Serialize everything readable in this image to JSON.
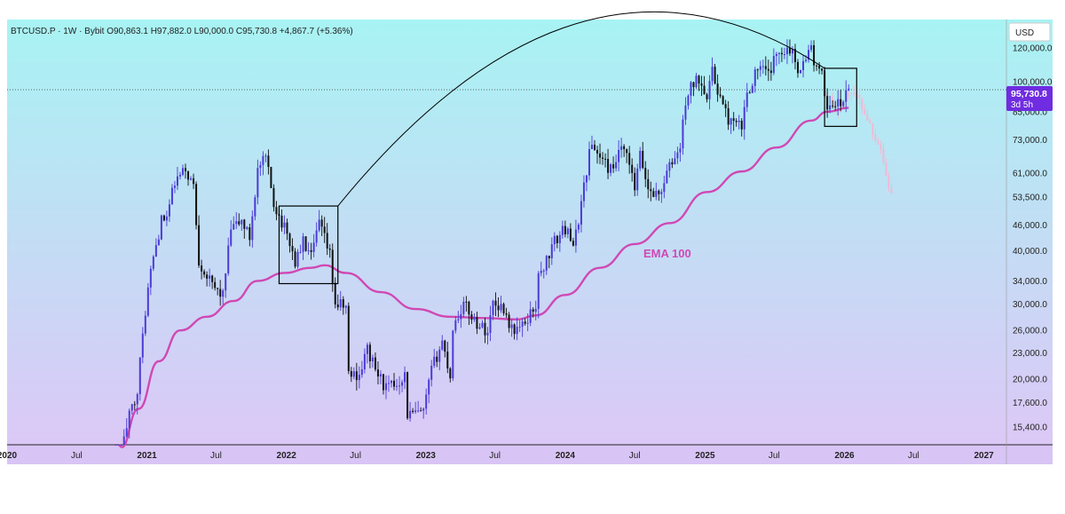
{
  "header": {
    "symbol": "BTCUSD.P",
    "interval": "1W",
    "exchange": "Bybit",
    "open": "O90,863.1",
    "high": "H97,882.0",
    "low": "L90,000.0",
    "close": "C95,730.8",
    "change": "+4,867.7 (+5.36%)"
  },
  "currency_label": "USD",
  "price_tag": {
    "price": "95,730.8",
    "countdown": "3d 5h"
  },
  "colors": {
    "bg_top": "#a8f3f3",
    "bg_bottom": "#dcc8f6",
    "bull": "#4b3bd6",
    "bear": "#111111",
    "ema": "#d048b4",
    "projection": "#f3b8d4",
    "box": "#000000",
    "price_tag": "#6f2ce0"
  },
  "chart_data": {
    "type": "candlestick",
    "y_scale": "log",
    "ylim": [
      14000,
      140000
    ],
    "xlim": [
      "2020-01-01",
      "2027-03-01"
    ],
    "y_ticks": [
      {
        "value": 120000,
        "label": "120,000.0"
      },
      {
        "value": 100000,
        "label": "100,000.0"
      },
      {
        "value": 85000,
        "label": "85,000.0"
      },
      {
        "value": 73000,
        "label": "73,000.0"
      },
      {
        "value": 61000,
        "label": "61,000.0"
      },
      {
        "value": 53500,
        "label": "53,500.0"
      },
      {
        "value": 46000,
        "label": "46,000.0"
      },
      {
        "value": 40000,
        "label": "40,000.0"
      },
      {
        "value": 34000,
        "label": "34,000.0"
      },
      {
        "value": 30000,
        "label": "30,000.0"
      },
      {
        "value": 26000,
        "label": "26,000.0"
      },
      {
        "value": 23000,
        "label": "23,000.0"
      },
      {
        "value": 20000,
        "label": "20,000.0"
      },
      {
        "value": 17600,
        "label": "17,600.0"
      },
      {
        "value": 15400,
        "label": "15,400.0"
      }
    ],
    "x_ticks": [
      {
        "date": "2020-01-01",
        "label": "2020",
        "bold": true
      },
      {
        "date": "2020-07-01",
        "label": "Jul",
        "bold": false
      },
      {
        "date": "2021-01-01",
        "label": "2021",
        "bold": true
      },
      {
        "date": "2021-07-01",
        "label": "Jul",
        "bold": false
      },
      {
        "date": "2022-01-01",
        "label": "2022",
        "bold": true
      },
      {
        "date": "2022-07-01",
        "label": "Jul",
        "bold": false
      },
      {
        "date": "2023-01-01",
        "label": "2023",
        "bold": true
      },
      {
        "date": "2023-07-01",
        "label": "Jul",
        "bold": false
      },
      {
        "date": "2024-01-01",
        "label": "2024",
        "bold": true
      },
      {
        "date": "2024-07-01",
        "label": "Jul",
        "bold": false
      },
      {
        "date": "2025-01-01",
        "label": "2025",
        "bold": true
      },
      {
        "date": "2025-07-01",
        "label": "Jul",
        "bold": false
      },
      {
        "date": "2026-01-01",
        "label": "2026",
        "bold": true
      },
      {
        "date": "2026-07-01",
        "label": "Jul",
        "bold": false
      },
      {
        "date": "2027-01-01",
        "label": "2027",
        "bold": true
      }
    ],
    "price_keypoints": [
      [
        "2020-10-12",
        11500
      ],
      [
        "2020-11-09",
        15500
      ],
      [
        "2020-12-07",
        19000
      ],
      [
        "2020-12-28",
        29000
      ],
      [
        "2021-01-11",
        36000
      ],
      [
        "2021-02-08",
        47000
      ],
      [
        "2021-02-22",
        48000
      ],
      [
        "2021-03-15",
        58000
      ],
      [
        "2021-04-12",
        62000
      ],
      [
        "2021-05-03",
        57000
      ],
      [
        "2021-05-17",
        38000
      ],
      [
        "2021-06-21",
        33000
      ],
      [
        "2021-07-19",
        31500
      ],
      [
        "2021-08-09",
        45000
      ],
      [
        "2021-09-06",
        47000
      ],
      [
        "2021-09-27",
        43000
      ],
      [
        "2021-10-18",
        62000
      ],
      [
        "2021-11-08",
        66000
      ],
      [
        "2021-11-29",
        52000
      ],
      [
        "2022-01-10",
        42000
      ],
      [
        "2022-01-24",
        37500
      ],
      [
        "2022-02-14",
        42000
      ],
      [
        "2022-03-07",
        38500
      ],
      [
        "2022-03-28",
        46500
      ],
      [
        "2022-04-25",
        39000
      ],
      [
        "2022-05-09",
        30000
      ],
      [
        "2022-06-06",
        29500
      ],
      [
        "2022-06-13",
        20500
      ],
      [
        "2022-07-11",
        20500
      ],
      [
        "2022-08-01",
        23500
      ],
      [
        "2022-08-22",
        21000
      ],
      [
        "2022-09-19",
        19000
      ],
      [
        "2022-10-17",
        19500
      ],
      [
        "2022-11-07",
        20500
      ],
      [
        "2022-11-14",
        16500
      ],
      [
        "2022-12-26",
        16600
      ],
      [
        "2023-01-16",
        21000
      ],
      [
        "2023-02-13",
        24500
      ],
      [
        "2023-03-06",
        20300
      ],
      [
        "2023-03-13",
        26500
      ],
      [
        "2023-04-10",
        30000
      ],
      [
        "2023-05-15",
        27000
      ],
      [
        "2023-06-12",
        25800
      ],
      [
        "2023-06-26",
        30400
      ],
      [
        "2023-07-24",
        29300
      ],
      [
        "2023-08-14",
        26100
      ],
      [
        "2023-09-11",
        26500
      ],
      [
        "2023-10-16",
        30000
      ],
      [
        "2023-10-23",
        34500
      ],
      [
        "2023-12-04",
        42000
      ],
      [
        "2024-01-08",
        46000
      ],
      [
        "2024-01-22",
        40000
      ],
      [
        "2024-02-12",
        52000
      ],
      [
        "2024-03-04",
        68000
      ],
      [
        "2024-03-11",
        71000
      ],
      [
        "2024-04-15",
        64000
      ],
      [
        "2024-05-06",
        61000
      ],
      [
        "2024-05-20",
        69000
      ],
      [
        "2024-06-10",
        67000
      ],
      [
        "2024-07-01",
        56000
      ],
      [
        "2024-07-15",
        67000
      ],
      [
        "2024-08-05",
        56000
      ],
      [
        "2024-09-02",
        54000
      ],
      [
        "2024-09-30",
        63000
      ],
      [
        "2024-10-28",
        70000
      ],
      [
        "2024-11-11",
        90000
      ],
      [
        "2024-11-25",
        97000
      ],
      [
        "2024-12-16",
        102000
      ],
      [
        "2025-01-06",
        94000
      ],
      [
        "2025-01-20",
        105000
      ],
      [
        "2025-02-24",
        84000
      ],
      [
        "2025-03-10",
        80000
      ],
      [
        "2025-04-07",
        78000
      ],
      [
        "2025-04-21",
        94000
      ],
      [
        "2025-05-19",
        108000
      ],
      [
        "2025-06-16",
        104000
      ],
      [
        "2025-07-14",
        119000
      ],
      [
        "2025-08-11",
        120000
      ],
      [
        "2025-09-01",
        108000
      ],
      [
        "2025-09-22",
        112000
      ],
      [
        "2025-10-06",
        124000
      ],
      [
        "2025-10-13",
        108000
      ],
      [
        "2025-11-03",
        103000
      ],
      [
        "2025-11-17",
        87000
      ],
      [
        "2025-12-01",
        89000
      ],
      [
        "2025-12-22",
        88000
      ],
      [
        "2026-01-12",
        95730.8
      ]
    ],
    "ema_points": [
      [
        "2020-10-20",
        13000
      ],
      [
        "2020-12-10",
        17000
      ],
      [
        "2021-02-01",
        22000
      ],
      [
        "2021-03-29",
        26000
      ],
      [
        "2021-06-07",
        28000
      ],
      [
        "2021-08-16",
        30500
      ],
      [
        "2021-10-18",
        34000
      ],
      [
        "2021-12-27",
        35500
      ],
      [
        "2022-03-07",
        36500
      ],
      [
        "2022-04-11",
        37000
      ],
      [
        "2022-06-06",
        35500
      ],
      [
        "2022-09-05",
        32000
      ],
      [
        "2022-12-05",
        29200
      ],
      [
        "2023-03-06",
        28000
      ],
      [
        "2023-06-05",
        27800
      ],
      [
        "2023-08-28",
        27600
      ],
      [
        "2023-10-16",
        28200
      ],
      [
        "2024-01-01",
        31500
      ],
      [
        "2024-04-01",
        36500
      ],
      [
        "2024-07-01",
        41500
      ],
      [
        "2024-10-01",
        46500
      ],
      [
        "2025-01-06",
        55000
      ],
      [
        "2025-04-07",
        61500
      ],
      [
        "2025-07-07",
        70000
      ],
      [
        "2025-10-06",
        81000
      ],
      [
        "2025-11-17",
        85000
      ],
      [
        "2026-01-12",
        86800
      ]
    ],
    "ema_label": "EMA 100",
    "projection_keypoints": [
      [
        "2025-11-17",
        94000
      ],
      [
        "2025-12-08",
        85000
      ],
      [
        "2025-12-29",
        90000
      ],
      [
        "2026-01-19",
        96000
      ],
      [
        "2026-02-09",
        90000
      ],
      [
        "2026-03-02",
        82000
      ],
      [
        "2026-03-23",
        74000
      ],
      [
        "2026-04-06",
        70000
      ],
      [
        "2026-04-20",
        60000
      ],
      [
        "2026-05-04",
        54000
      ]
    ],
    "current_price": 95730.8,
    "boxes": [
      {
        "x0": "2021-12-13",
        "x1": "2022-05-16",
        "y_low": 33500,
        "y_high": 51000
      },
      {
        "x0": "2025-11-10",
        "x1": "2026-02-02",
        "y_low": 78500,
        "y_high": 107500
      }
    ],
    "arc": {
      "from": [
        "2022-05-16",
        51000
      ],
      "to": [
        "2025-11-10",
        107500
      ],
      "peak_value": 138000
    }
  }
}
